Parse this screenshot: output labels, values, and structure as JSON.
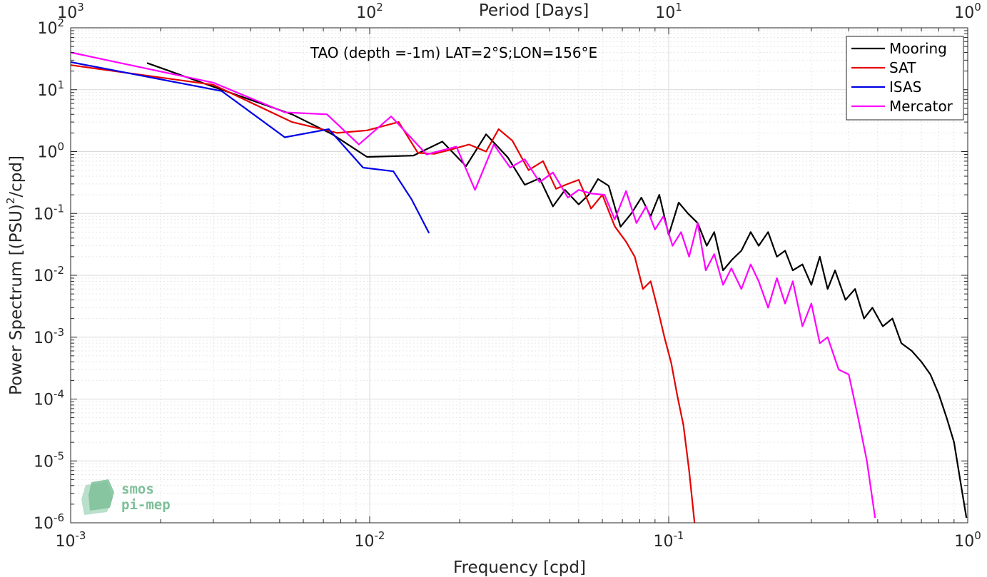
{
  "chart_data": {
    "type": "line",
    "title": "TAO (depth =-1m) LAT=2°S;LON=156°E",
    "xlabel": "Frequency [cpd]",
    "ylabel": "Power Spectrum [(PSU)²/cpd]",
    "ylabel_parts": [
      "Power Spectrum [(PSU)",
      "2",
      "/cpd]"
    ],
    "top_xlabel": "Period [Days]",
    "xscale": "log",
    "yscale": "log",
    "xlim": [
      0.001,
      1
    ],
    "ylim": [
      1e-06,
      100
    ],
    "grid": true,
    "legend_position": "top-right",
    "x_ticks": [
      {
        "value": 0.001,
        "base": "10",
        "exp": "-3"
      },
      {
        "value": 0.01,
        "base": "10",
        "exp": "-2"
      },
      {
        "value": 0.1,
        "base": "10",
        "exp": "-1"
      },
      {
        "value": 1,
        "base": "10",
        "exp": "0"
      }
    ],
    "top_ticks": [
      {
        "value": 0.001,
        "base": "10",
        "exp": "3"
      },
      {
        "value": 0.01,
        "base": "10",
        "exp": "2"
      },
      {
        "value": 0.1,
        "base": "10",
        "exp": "1"
      },
      {
        "value": 1,
        "base": "10",
        "exp": "0"
      }
    ],
    "y_ticks": [
      {
        "value": 100,
        "base": "10",
        "exp": "2"
      },
      {
        "value": 10,
        "base": "10",
        "exp": "1"
      },
      {
        "value": 1,
        "base": "10",
        "exp": "0"
      },
      {
        "value": 0.1,
        "base": "10",
        "exp": "-1"
      },
      {
        "value": 0.01,
        "base": "10",
        "exp": "-2"
      },
      {
        "value": 0.001,
        "base": "10",
        "exp": "-3"
      },
      {
        "value": 0.0001,
        "base": "10",
        "exp": "-4"
      },
      {
        "value": 1e-05,
        "base": "10",
        "exp": "-5"
      },
      {
        "value": 1e-06,
        "base": "10",
        "exp": "-6"
      }
    ],
    "series": [
      {
        "name": "Mooring",
        "color": "#000000",
        "x": [
          0.0018,
          0.0032,
          0.0055,
          0.0075,
          0.0098,
          0.014,
          0.0175,
          0.021,
          0.0245,
          0.029,
          0.033,
          0.037,
          0.041,
          0.045,
          0.05,
          0.054,
          0.058,
          0.063,
          0.069,
          0.075,
          0.081,
          0.087,
          0.093,
          0.1,
          0.108,
          0.116,
          0.125,
          0.134,
          0.142,
          0.152,
          0.163,
          0.175,
          0.188,
          0.2,
          0.215,
          0.23,
          0.245,
          0.26,
          0.28,
          0.3,
          0.32,
          0.34,
          0.36,
          0.39,
          0.42,
          0.45,
          0.48,
          0.52,
          0.56,
          0.6,
          0.65,
          0.7,
          0.75,
          0.8,
          0.85,
          0.9,
          0.95,
          0.99
        ],
        "y": [
          27,
          10,
          4,
          1.9,
          0.82,
          0.86,
          1.45,
          0.58,
          1.9,
          0.8,
          0.29,
          0.37,
          0.13,
          0.24,
          0.14,
          0.2,
          0.36,
          0.28,
          0.061,
          0.1,
          0.18,
          0.09,
          0.2,
          0.045,
          0.15,
          0.1,
          0.07,
          0.03,
          0.05,
          0.012,
          0.018,
          0.025,
          0.05,
          0.03,
          0.05,
          0.02,
          0.025,
          0.012,
          0.015,
          0.007,
          0.02,
          0.006,
          0.012,
          0.004,
          0.006,
          0.002,
          0.003,
          0.0015,
          0.002,
          0.0008,
          0.0006,
          0.0004,
          0.00025,
          0.00012,
          5e-05,
          2e-05,
          4e-06,
          1.2e-06
        ]
      },
      {
        "name": "SAT",
        "color": "#e60000",
        "x": [
          0.001,
          0.003,
          0.0055,
          0.0078,
          0.0098,
          0.0125,
          0.0145,
          0.0165,
          0.019,
          0.0215,
          0.0245,
          0.027,
          0.03,
          0.034,
          0.038,
          0.042,
          0.046,
          0.05,
          0.055,
          0.06,
          0.066,
          0.072,
          0.077,
          0.082,
          0.087,
          0.092,
          0.097,
          0.102,
          0.107,
          0.112,
          0.117,
          0.122
        ],
        "y": [
          25,
          12,
          3,
          2,
          2.2,
          3,
          0.95,
          0.92,
          1.1,
          1.3,
          1.0,
          2.3,
          1.5,
          0.5,
          0.7,
          0.25,
          0.3,
          0.35,
          0.12,
          0.2,
          0.062,
          0.035,
          0.02,
          0.006,
          0.008,
          0.0028,
          0.00095,
          0.00038,
          0.00011,
          3.8e-05,
          7e-06,
          1e-06
        ]
      },
      {
        "name": "ISAS",
        "color": "#0000e6",
        "x": [
          0.001,
          0.0032,
          0.0052,
          0.0073,
          0.0095,
          0.012,
          0.0138,
          0.0158
        ],
        "y": [
          28,
          9.5,
          1.7,
          2.3,
          0.55,
          0.48,
          0.17,
          0.048
        ]
      },
      {
        "name": "Mercator",
        "color": "#ff00ff",
        "x": [
          0.001,
          0.003,
          0.0052,
          0.0072,
          0.0092,
          0.0118,
          0.0155,
          0.0195,
          0.0225,
          0.026,
          0.0295,
          0.033,
          0.037,
          0.041,
          0.046,
          0.05,
          0.055,
          0.061,
          0.066,
          0.072,
          0.078,
          0.084,
          0.09,
          0.096,
          0.103,
          0.11,
          0.117,
          0.125,
          0.133,
          0.142,
          0.152,
          0.162,
          0.175,
          0.188,
          0.2,
          0.215,
          0.23,
          0.245,
          0.26,
          0.28,
          0.3,
          0.32,
          0.34,
          0.37,
          0.4,
          0.43,
          0.46,
          0.49
        ],
        "y": [
          40,
          13,
          4.3,
          4.0,
          1.3,
          3.7,
          0.9,
          1.2,
          0.24,
          1.3,
          0.55,
          0.75,
          0.32,
          0.46,
          0.18,
          0.24,
          0.21,
          0.2,
          0.08,
          0.23,
          0.07,
          0.13,
          0.055,
          0.09,
          0.03,
          0.05,
          0.02,
          0.07,
          0.012,
          0.022,
          0.007,
          0.013,
          0.006,
          0.015,
          0.008,
          0.003,
          0.009,
          0.0035,
          0.008,
          0.0015,
          0.0035,
          0.0008,
          0.001,
          0.0003,
          0.00025,
          5e-05,
          1e-05,
          1.2e-06
        ]
      }
    ]
  },
  "logo": {
    "line1": "smos",
    "line2": "pi-mep",
    "color": "#7dbf98"
  }
}
